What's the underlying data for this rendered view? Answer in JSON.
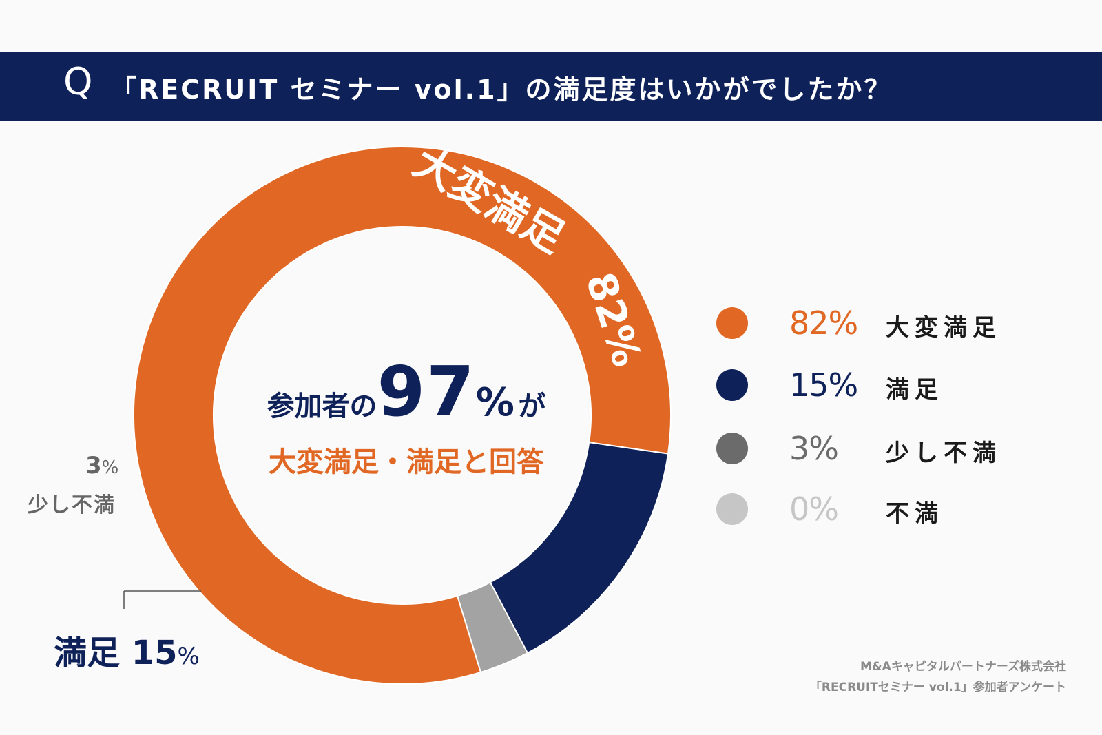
{
  "question": {
    "mark": "Q",
    "text": "「RECRUIT セミナー vol.1」の満足度はいかがでしたか？"
  },
  "center": {
    "line1_prefix": "参加者の",
    "line1_value": "97",
    "line1_pct": "%",
    "line1_suffix": "が",
    "line2": "大変満足・満足と回答"
  },
  "chart_data": {
    "type": "pie",
    "donut": true,
    "title": "「RECRUIT セミナー vol.1」の満足度はいかがでしたか？",
    "series": [
      {
        "name": "大変満足",
        "value": 82,
        "color": "#e06824"
      },
      {
        "name": "満足",
        "value": 15,
        "color": "#0f2159"
      },
      {
        "name": "少し不満",
        "value": 3,
        "color": "#a3a3a3"
      },
      {
        "name": "不満",
        "value": 0,
        "color": "#c6c6c6"
      }
    ],
    "annotations": {
      "slice1_name": "大変満足",
      "slice1_value": "82%"
    }
  },
  "labels": {
    "small_pct": "3",
    "small_pct_sign": "%",
    "small_name": "少し不満",
    "sat_name": "満足",
    "sat_pct": "15",
    "sat_pct_sign": "%"
  },
  "legend": [
    {
      "pct": "82%",
      "name": "大変満足",
      "dot_color": "#e06824",
      "pct_color": "#e06824"
    },
    {
      "pct": "15%",
      "name": "満足",
      "dot_color": "#0f2159",
      "pct_color": "#0f2159"
    },
    {
      "pct": "3%",
      "name": "少し不満",
      "dot_color": "#6b6b6b",
      "pct_color": "#6b6b6b"
    },
    {
      "pct": "0%",
      "name": "不満",
      "dot_color": "#c6c6c6",
      "pct_color": "#c6c6c6"
    }
  ],
  "source": {
    "line1": "M&Aキャピタルパートナーズ株式会社",
    "line2": "「RECRUITセミナー vol.1」参加者アンケート"
  }
}
